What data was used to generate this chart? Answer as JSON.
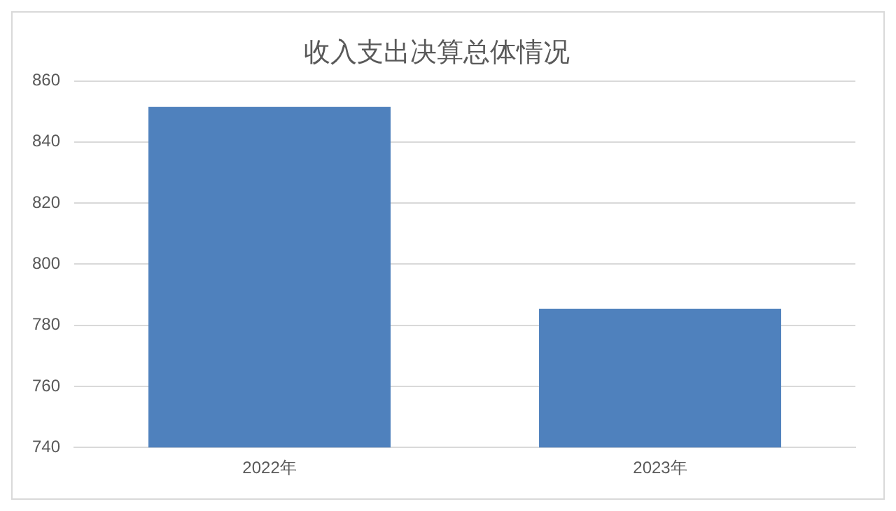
{
  "chart_data": {
    "type": "bar",
    "title": "收入支出决算总体情况",
    "categories": [
      "2022年",
      "2023年"
    ],
    "values": [
      851.5,
      785.4
    ],
    "color": "#4f81bd",
    "ylim": [
      740,
      860
    ],
    "yticks": [
      740,
      760,
      780,
      800,
      820,
      840,
      860
    ],
    "grid": "y",
    "legend": false
  }
}
